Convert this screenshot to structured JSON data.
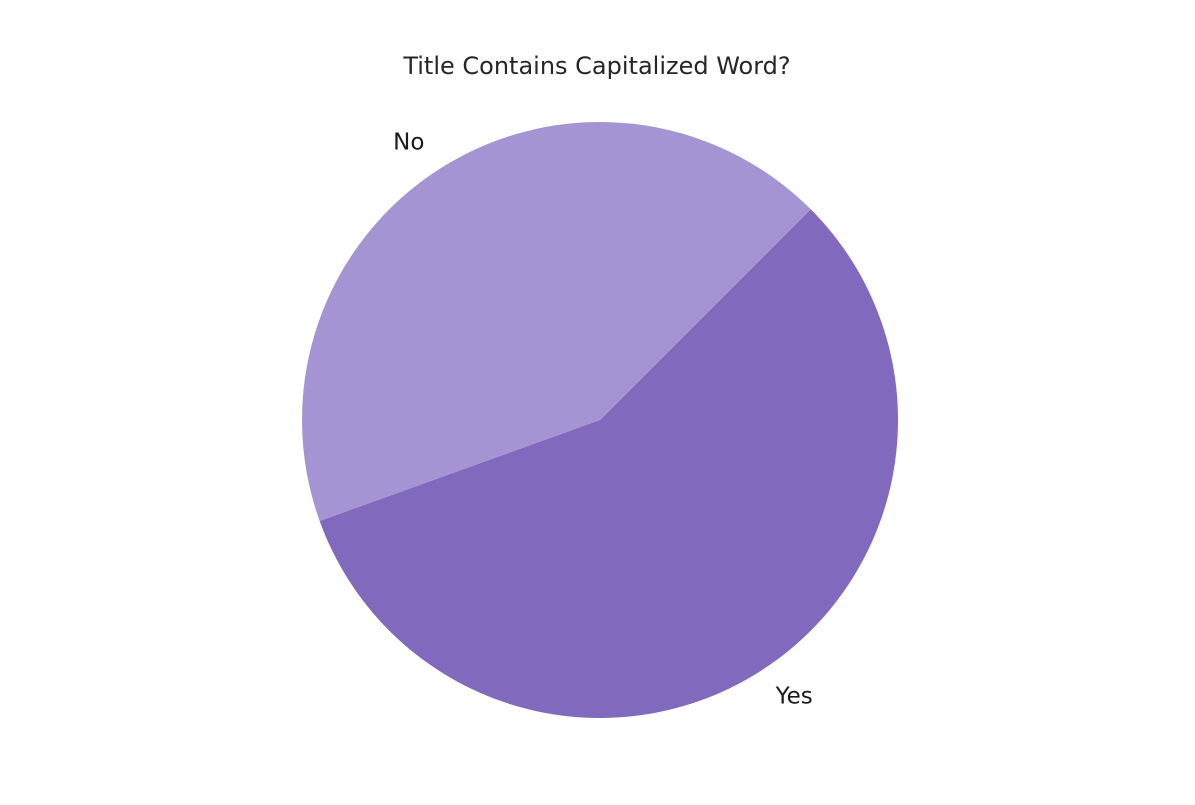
{
  "chart_data": {
    "type": "pie",
    "title": "Title Contains Capitalized Word?",
    "slices": [
      {
        "label": "Yes",
        "value": 57,
        "color": "#8169bd"
      },
      {
        "label": "No",
        "value": 43,
        "color": "#a594d3"
      }
    ],
    "start_angle_deg": 45,
    "direction": "clockwise",
    "legend": "none"
  }
}
